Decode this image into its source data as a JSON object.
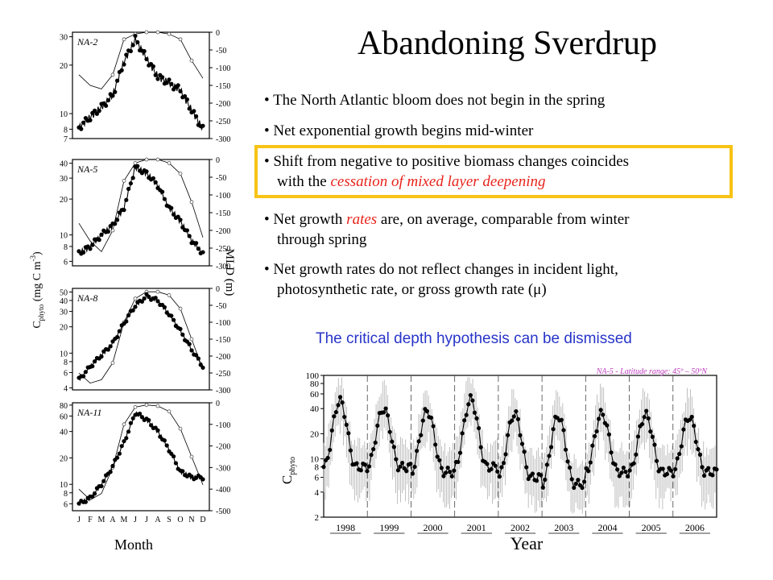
{
  "slide": {
    "title": "Abandoning Sverdrup",
    "bullets": [
      {
        "parts": [
          "The North Atlantic bloom does not begin in the spring"
        ]
      },
      {
        "parts": [
          "Net exponential growth begins mid-winter"
        ]
      },
      {
        "line1": "Shift from negative to positive biomass changes coincides",
        "line2_pre": "with the ",
        "line2_red": "cessation of mixed layer deepening",
        "highlight": true
      },
      {
        "line1_pre": "Net growth ",
        "line1_red": "rates",
        "line1_post": " are, on average, comparable from winter",
        "line2": "through spring"
      },
      {
        "line1": "Net growth rates do not reflect changes in incident light,",
        "line2": "photosynthetic rate, or gross growth rate (μ)"
      }
    ],
    "conclusion": "The critical depth hypothesis can be dismissed",
    "colors": {
      "highlight_border": "#f7c315",
      "emphasis": "#e8231b",
      "conclusion": "#2835c9",
      "region_label": "#c040c0",
      "noise": "#b0b0b0"
    }
  },
  "left_panels": {
    "ylabel_left": "C phyto (mg C m-3)",
    "ylabel_left_parts": {
      "c": "C",
      "sub": "phyto",
      "mid": "(mg C m",
      "sup": "-3",
      "end": ")"
    },
    "ylabel_right": "MLD (m)",
    "xlabel": "Month",
    "month_letters": [
      "J",
      "F",
      "M",
      "A",
      "M",
      "J",
      "J",
      "A",
      "S",
      "O",
      "N",
      "D"
    ]
  },
  "chart_data": [
    {
      "type": "line",
      "panel": "NA-2",
      "label": "NA-2",
      "x": [
        1,
        2,
        3,
        4,
        5,
        6,
        7,
        8,
        9,
        10,
        11,
        12
      ],
      "series": [
        {
          "name": "C phyto",
          "values": [
            8.2,
            9.5,
            11,
            13,
            21,
            29,
            22,
            17,
            15.5,
            14,
            10.5,
            8
          ],
          "marker": "filled"
        },
        {
          "name": "MLD",
          "values": [
            -120,
            -150,
            -160,
            -120,
            -20,
            -5,
            0,
            0,
            -5,
            -20,
            -80,
            -130
          ],
          "marker": "open"
        }
      ],
      "y_left_ticks": [
        "30",
        "20",
        "10",
        "8",
        "7"
      ],
      "y_left_log": true,
      "y_right_ticks": [
        "0",
        "-50",
        "-100",
        "-150",
        "-200",
        "-250",
        "-300"
      ],
      "y_right_range": [
        -300,
        0
      ]
    },
    {
      "type": "line",
      "panel": "NA-5",
      "label": "NA-5",
      "x": [
        1,
        2,
        3,
        4,
        5,
        6,
        7,
        8,
        9,
        10,
        11,
        12
      ],
      "series": [
        {
          "name": "C phyto",
          "values": [
            7,
            8,
            10,
            12,
            17,
            37,
            33,
            26,
            17,
            13,
            9,
            7
          ],
          "marker": "filled"
        },
        {
          "name": "MLD",
          "values": [
            -180,
            -230,
            -260,
            -200,
            -60,
            -10,
            0,
            0,
            -10,
            -40,
            -120,
            -220
          ],
          "marker": "open"
        }
      ],
      "y_left_ticks": [
        "40",
        "30",
        "20",
        "10",
        "8",
        "6"
      ],
      "y_left_log": true,
      "y_right_ticks": [
        "0",
        "-50",
        "-100",
        "-150",
        "-200",
        "-250",
        "-300"
      ],
      "y_right_range": [
        -300,
        0
      ]
    },
    {
      "type": "line",
      "panel": "NA-8",
      "label": "NA-8",
      "x": [
        1,
        2,
        3,
        4,
        5,
        6,
        7,
        8,
        9,
        10,
        11,
        12
      ],
      "series": [
        {
          "name": "C phyto",
          "values": [
            5,
            7,
            9.5,
            13,
            22,
            35,
            45,
            40,
            28,
            18,
            11,
            7
          ],
          "marker": "filled"
        },
        {
          "name": "MLD",
          "values": [
            -250,
            -280,
            -270,
            -220,
            -100,
            -30,
            -10,
            -10,
            -20,
            -60,
            -150,
            -240
          ],
          "marker": "open"
        }
      ],
      "y_left_ticks": [
        "50",
        "40",
        "30",
        "20",
        "10",
        "8",
        "6",
        "4"
      ],
      "y_left_log": true,
      "y_right_ticks": [
        "0",
        "-50",
        "-100",
        "-150",
        "-200",
        "-250",
        "-300"
      ],
      "y_right_range": [
        -300,
        0
      ]
    },
    {
      "type": "line",
      "panel": "NA-11",
      "label": "NA-11",
      "x": [
        1,
        2,
        3,
        4,
        5,
        6,
        7,
        8,
        9,
        10,
        11,
        12
      ],
      "series": [
        {
          "name": "C phyto",
          "values": [
            6,
            7,
            10,
            16,
            30,
            65,
            55,
            40,
            25,
            14,
            12,
            12
          ],
          "marker": "filled"
        },
        {
          "name": "MLD",
          "values": [
            -400,
            -450,
            -420,
            -300,
            -100,
            -20,
            -10,
            -15,
            -40,
            -120,
            -250,
            -380
          ],
          "marker": "open"
        }
      ],
      "y_left_ticks": [
        "80",
        "60",
        "40",
        "20",
        "10",
        "8",
        "6"
      ],
      "y_left_log": true,
      "y_right_ticks": [
        "0",
        "-100",
        "-200",
        "-300",
        "-400",
        "-500"
      ],
      "y_right_range": [
        -500,
        0
      ]
    },
    {
      "type": "line",
      "panel": "timeseries",
      "region_label": "NA-5 - Latitude range: 45º – 50ºN",
      "ylabel": "C phyto",
      "ylabel_parts": {
        "c": "C",
        "sub": "phyto"
      },
      "xlabel": "Year",
      "categories": [
        "1998",
        "1999",
        "2000",
        "2001",
        "2002",
        "2003",
        "2004",
        "2005",
        "2006"
      ],
      "series": [
        {
          "name": "C phyto",
          "annual_min": [
            8,
            8,
            7,
            8,
            6,
            5,
            7,
            7,
            7
          ],
          "annual_max": [
            50,
            40,
            38,
            52,
            35,
            33,
            35,
            34,
            32
          ],
          "marker": "filled"
        }
      ],
      "y_ticks": [
        "100",
        "80",
        "60",
        "40",
        "20",
        "10",
        "8",
        "6",
        "4",
        "2"
      ],
      "y_log": true,
      "ylim": [
        2,
        100
      ]
    }
  ]
}
